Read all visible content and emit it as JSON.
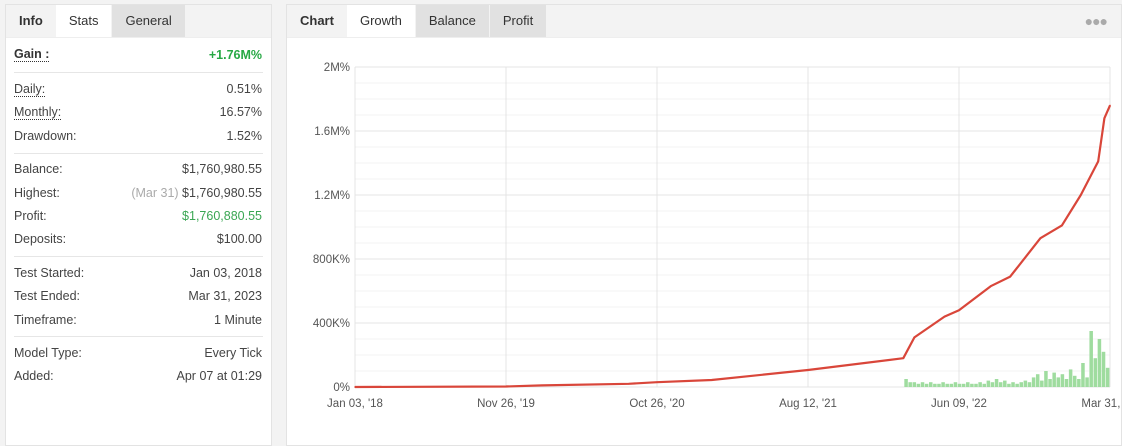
{
  "left_panel": {
    "tabs": [
      {
        "label": "Info",
        "active": false
      },
      {
        "label": "Stats",
        "active": true
      },
      {
        "label": "General",
        "active": false
      }
    ],
    "gain": {
      "label": "Gain :",
      "value": "+1.76M%"
    },
    "rates": [
      {
        "label": "Daily:",
        "value": "0.51%"
      },
      {
        "label": "Monthly:",
        "value": "16.57%"
      },
      {
        "label": "Drawdown:",
        "value": "1.52%"
      }
    ],
    "balance": [
      {
        "label": "Balance:",
        "value": "$1,760,980.55"
      },
      {
        "label": "Highest:",
        "note": "(Mar 31)",
        "value": "$1,760,980.55"
      },
      {
        "label": "Profit:",
        "value": "$1,760,880.55"
      },
      {
        "label": "Deposits:",
        "value": "$100.00"
      }
    ],
    "test": [
      {
        "label": "Test Started:",
        "value": "Jan 03, 2018"
      },
      {
        "label": "Test Ended:",
        "value": "Mar 31, 2023"
      },
      {
        "label": "Timeframe:",
        "value": "1 Minute"
      }
    ],
    "model": [
      {
        "label": "Model Type:",
        "value": "Every Tick"
      },
      {
        "label": "Added:",
        "value": "Apr 07 at 01:29"
      }
    ]
  },
  "right_panel": {
    "tabs": [
      {
        "label": "Chart"
      },
      {
        "label": "Growth",
        "active": true
      },
      {
        "label": "Balance"
      },
      {
        "label": "Profit"
      }
    ],
    "more_icon": "ellipsis-icon"
  },
  "colors": {
    "growth_line": "#d9463a",
    "bars": "#9fdc9f",
    "gain": "#27a844"
  },
  "chart_data": {
    "type": "line",
    "grid": true,
    "ylim": [
      0,
      2
    ],
    "y_unit": "M%",
    "y_ticks": [
      {
        "value": 0,
        "label": "0%"
      },
      {
        "value": 0.4,
        "label": "400K%"
      },
      {
        "value": 0.8,
        "label": "800K%"
      },
      {
        "value": 1.2,
        "label": "1.2M%"
      },
      {
        "value": 1.6,
        "label": "1.6M%"
      },
      {
        "value": 2,
        "label": "2M%"
      }
    ],
    "x_ticks": [
      {
        "date": "2018-01-03",
        "label": "Jan 03, '18"
      },
      {
        "date": "2019-11-26",
        "label": "Nov 26, '19"
      },
      {
        "date": "2020-10-26",
        "label": "Oct 26, '20"
      },
      {
        "date": "2021-08-12",
        "label": "Aug 12, '21"
      },
      {
        "date": "2022-06-09",
        "label": "Jun 09, '22"
      },
      {
        "date": "2023-03-31",
        "label": "Mar 31, '23"
      }
    ],
    "series": [
      {
        "points": [
          [
            "2018-01-03",
            0
          ],
          [
            "2019-11-26",
            0.003
          ],
          [
            "2020-02-14",
            0.01
          ],
          [
            "2020-08-24",
            0.02
          ],
          [
            "2020-10-26",
            0.03
          ],
          [
            "2021-02-08",
            0.044
          ],
          [
            "2021-08-12",
            0.106
          ],
          [
            "2022-02-18",
            0.18
          ],
          [
            "2022-03-12",
            0.31
          ],
          [
            "2022-05-11",
            0.44
          ],
          [
            "2022-06-09",
            0.48
          ],
          [
            "2022-08-10",
            0.63
          ],
          [
            "2022-09-17",
            0.69
          ],
          [
            "2022-11-15",
            0.93
          ],
          [
            "2022-12-27",
            1.01
          ],
          [
            "2023-02-02",
            1.2
          ],
          [
            "2023-03-08",
            1.41
          ],
          [
            "2023-03-20",
            1.68
          ],
          [
            "2023-03-31",
            1.76
          ]
        ]
      }
    ],
    "bars": {
      "from": "2022-02-20",
      "to": "2023-03-31",
      "values": [
        0.05,
        0.03,
        0.03,
        0.02,
        0.03,
        0.02,
        0.03,
        0.02,
        0.02,
        0.03,
        0.02,
        0.02,
        0.03,
        0.02,
        0.02,
        0.03,
        0.02,
        0.02,
        0.03,
        0.02,
        0.04,
        0.03,
        0.05,
        0.03,
        0.04,
        0.02,
        0.03,
        0.02,
        0.03,
        0.04,
        0.03,
        0.06,
        0.08,
        0.04,
        0.1,
        0.05,
        0.09,
        0.06,
        0.08,
        0.05,
        0.11,
        0.07,
        0.05,
        0.15,
        0.06,
        0.35,
        0.18,
        0.3,
        0.22,
        0.12
      ]
    }
  }
}
